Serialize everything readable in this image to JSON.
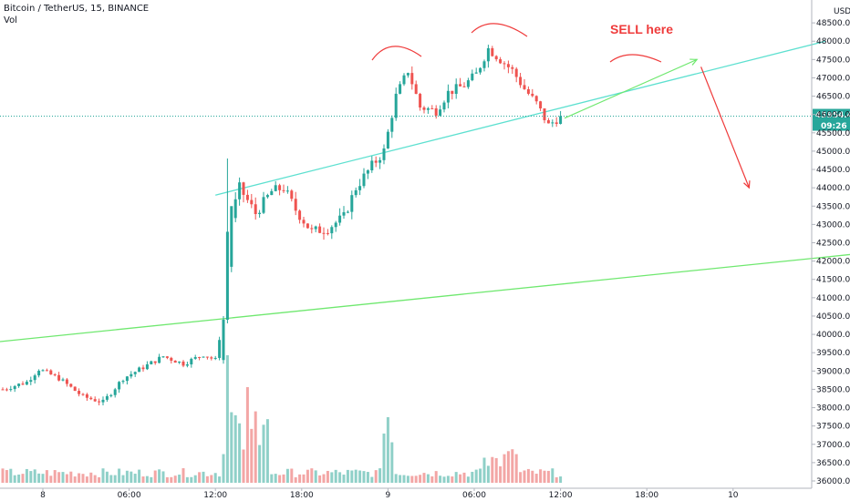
{
  "header": {
    "title": "Bitcoin / TetherUS, 15, BINANCE",
    "volume_label": "Vol"
  },
  "colors": {
    "up": "#26a69a",
    "down": "#ef5350",
    "vol_up": "#8fd0c8",
    "vol_down": "#f3a6a5",
    "trend_cyan": "#5de0d0",
    "trend_green": "#6fe86f",
    "annotation_red": "#ef3b3b",
    "current_price_bg": "#26a69a"
  },
  "chart_data": {
    "type": "candlestick",
    "symbol": "Bitcoin / TetherUS",
    "interval": "15",
    "exchange": "BINANCE",
    "y_axis": {
      "unit": "USDT",
      "ylim": [
        36000,
        49000
      ],
      "ticks": [
        "48500.00",
        "48000.00",
        "47500.00",
        "47000.00",
        "46500.00",
        "46000.00",
        "45500.00",
        "45000.00",
        "44500.00",
        "44000.00",
        "43500.00",
        "43000.00",
        "42500.00",
        "42000.00",
        "41500.00",
        "41000.00",
        "40500.00",
        "40000.00",
        "39500.00",
        "39000.00",
        "38500.00",
        "38000.00",
        "37500.00",
        "37000.00",
        "36500.00",
        "36000.00"
      ]
    },
    "x_axis": {
      "labels": [
        "8",
        "06:00",
        "12:00",
        "18:00",
        "9",
        "06:00",
        "12:00",
        "18:00",
        "10"
      ]
    },
    "current_price": "45954.45",
    "countdown": "09:26",
    "axis_top_label": "USDT",
    "annotation": "SELL here",
    "price_path": [
      {
        "t": 0,
        "p": 38500
      },
      {
        "t": 6,
        "p": 38700
      },
      {
        "t": 9,
        "p": 39050
      },
      {
        "t": 14,
        "p": 38800
      },
      {
        "t": 20,
        "p": 38300
      },
      {
        "t": 25,
        "p": 38150
      },
      {
        "t": 30,
        "p": 38800
      },
      {
        "t": 35,
        "p": 39100
      },
      {
        "t": 40,
        "p": 39400
      },
      {
        "t": 45,
        "p": 39200
      },
      {
        "t": 50,
        "p": 39450
      },
      {
        "t": 53,
        "p": 39300
      },
      {
        "t": 55,
        "p": 40500
      },
      {
        "t": 57,
        "p": 43200
      },
      {
        "t": 59,
        "p": 44000
      },
      {
        "t": 63,
        "p": 43300
      },
      {
        "t": 67,
        "p": 43900
      },
      {
        "t": 70,
        "p": 44000
      },
      {
        "t": 73,
        "p": 43400
      },
      {
        "t": 77,
        "p": 42800
      },
      {
        "t": 81,
        "p": 42900
      },
      {
        "t": 85,
        "p": 43200
      },
      {
        "t": 88,
        "p": 44000
      },
      {
        "t": 92,
        "p": 44600
      },
      {
        "t": 95,
        "p": 45000
      },
      {
        "t": 98,
        "p": 46500
      },
      {
        "t": 101,
        "p": 47200
      },
      {
        "t": 104,
        "p": 46200
      },
      {
        "t": 108,
        "p": 46100
      },
      {
        "t": 111,
        "p": 46600
      },
      {
        "t": 115,
        "p": 46800
      },
      {
        "t": 118,
        "p": 47100
      },
      {
        "t": 121,
        "p": 47800
      },
      {
        "t": 124,
        "p": 47500
      },
      {
        "t": 127,
        "p": 47200
      },
      {
        "t": 130,
        "p": 46700
      },
      {
        "t": 133,
        "p": 46300
      },
      {
        "t": 136,
        "p": 45700
      },
      {
        "t": 139,
        "p": 45954
      }
    ],
    "trendlines": [
      {
        "name": "cyan_channel",
        "from": {
          "t": 53,
          "p": 43800
        },
        "to": {
          "t": 205,
          "p": 48000
        }
      },
      {
        "name": "green_support",
        "from": {
          "t": -1,
          "p": 39800
        },
        "to": {
          "t": 222,
          "p": 42300
        }
      }
    ],
    "projection": {
      "up_arrow": {
        "from": {
          "t": 140,
          "p": 45900
        },
        "to": {
          "t": 173,
          "p": 47500
        }
      },
      "down_arrow": {
        "from": {
          "t": 174,
          "p": 47300
        },
        "to": {
          "t": 186,
          "p": 44000
        }
      }
    }
  }
}
